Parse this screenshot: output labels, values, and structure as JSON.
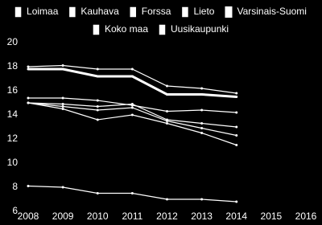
{
  "chart_data": {
    "type": "line",
    "x": [
      2008,
      2009,
      2010,
      2011,
      2012,
      2013,
      2014,
      2015,
      2016
    ],
    "xlim": [
      2008,
      2016
    ],
    "xticks": [
      2008,
      2009,
      2010,
      2011,
      2012,
      2013,
      2014,
      2015,
      2016
    ],
    "ylim": [
      6,
      20
    ],
    "yticks": [
      6,
      8,
      10,
      12,
      14,
      16,
      18,
      20
    ],
    "grid": false,
    "legend": "top",
    "series": [
      {
        "name": "Loimaa",
        "color": "#ffffff",
        "values": [
          18.0,
          18.1,
          17.8,
          17.8,
          16.4,
          16.2,
          15.8,
          null,
          null
        ]
      },
      {
        "name": "Kauhava",
        "color": "#ffffff",
        "values": [
          15.4,
          15.4,
          15.2,
          14.8,
          14.3,
          14.4,
          14.2,
          null,
          null
        ]
      },
      {
        "name": "Forssa",
        "color": "#ffffff",
        "values": [
          15.0,
          14.9,
          14.7,
          14.9,
          13.6,
          13.3,
          13.0,
          null,
          null
        ]
      },
      {
        "name": "Lieto",
        "color": "#ffffff",
        "values": [
          15.0,
          14.7,
          14.4,
          14.6,
          13.5,
          12.9,
          12.3,
          null,
          null
        ]
      },
      {
        "name": "Varsinais-Suomi",
        "color": "#ffffff",
        "line_width": 3,
        "values": [
          17.8,
          17.8,
          17.2,
          17.2,
          15.7,
          15.7,
          15.5,
          null,
          null
        ]
      },
      {
        "name": "Koko maa",
        "color": "#ffffff",
        "values": [
          15.0,
          14.5,
          13.6,
          14.0,
          13.3,
          12.5,
          11.5,
          null,
          null
        ]
      },
      {
        "name": "Uusikaupunki",
        "color": "#ffffff",
        "values": [
          8.1,
          8.0,
          7.5,
          7.5,
          7.0,
          7.0,
          6.8,
          null,
          null
        ]
      }
    ]
  }
}
